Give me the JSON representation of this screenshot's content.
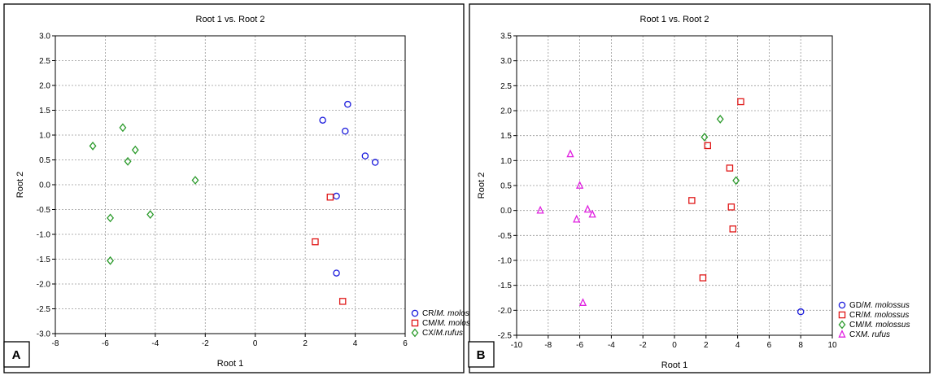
{
  "chart_data": [
    {
      "type": "scatter",
      "panel_label": "A",
      "title": "Root 1 vs. Root 2",
      "xlabel": "Root 1",
      "ylabel": "Root 2",
      "xlim": [
        -8,
        6
      ],
      "ylim": [
        -3.0,
        3.0
      ],
      "xticks": [
        "-8",
        "-6",
        "-4",
        "-2",
        "0",
        "2",
        "4",
        "6"
      ],
      "yticks": [
        "3.0",
        "2.5",
        "2.0",
        "1.5",
        "1.0",
        "0.5",
        "0.0",
        "-0.5",
        "-1.0",
        "-1.5",
        "-2.0",
        "-2.5",
        "-3.0"
      ],
      "grid": true,
      "legend_position": "bottom-right",
      "series": [
        {
          "name_prefix": "CR/",
          "name_italic": "M. molossus",
          "marker": "circle",
          "color": "#1a1adc",
          "points": [
            [
              2.7,
              1.3
            ],
            [
              3.7,
              1.62
            ],
            [
              3.6,
              1.08
            ],
            [
              4.4,
              0.58
            ],
            [
              4.8,
              0.45
            ],
            [
              3.25,
              -0.23
            ],
            [
              3.25,
              -1.78
            ]
          ]
        },
        {
          "name_prefix": "CM/",
          "name_italic": "M. molossus",
          "marker": "square",
          "color": "#e01818",
          "points": [
            [
              3.0,
              -0.25
            ],
            [
              2.4,
              -1.15
            ],
            [
              3.5,
              -2.35
            ]
          ]
        },
        {
          "name_prefix": "CX/",
          "name_italic": "M.rufus",
          "marker": "diamond",
          "color": "#2a9a2a",
          "points": [
            [
              -6.5,
              0.78
            ],
            [
              -5.3,
              1.15
            ],
            [
              -4.8,
              0.7
            ],
            [
              -5.1,
              0.47
            ],
            [
              -2.4,
              0.09
            ],
            [
              -5.8,
              -0.67
            ],
            [
              -4.2,
              -0.6
            ],
            [
              -5.8,
              -1.53
            ]
          ]
        }
      ]
    },
    {
      "type": "scatter",
      "panel_label": "B",
      "title": "Root 1 vs. Root 2",
      "xlabel": "Root 1",
      "ylabel": "Root 2",
      "xlim": [
        -10,
        10
      ],
      "ylim": [
        -2.5,
        3.5
      ],
      "xticks": [
        "-10",
        "-8",
        "-6",
        "-4",
        "-2",
        "0",
        "2",
        "4",
        "6",
        "8",
        "10"
      ],
      "yticks": [
        "3.5",
        "3.0",
        "2.5",
        "2.0",
        "1.5",
        "1.0",
        "0.5",
        "0.0",
        "-0.5",
        "-1.0",
        "-1.5",
        "-2.0",
        "-2.5"
      ],
      "grid": true,
      "legend_position": "bottom-right",
      "series": [
        {
          "name_prefix": "GD/",
          "name_italic": "M. molossus",
          "marker": "circle",
          "color": "#1a1adc",
          "points": [
            [
              8.0,
              -2.03
            ]
          ]
        },
        {
          "name_prefix": "CR/",
          "name_italic": "M. molossus",
          "marker": "square",
          "color": "#e01818",
          "points": [
            [
              4.2,
              2.18
            ],
            [
              2.1,
              1.3
            ],
            [
              3.5,
              0.85
            ],
            [
              1.1,
              0.2
            ],
            [
              3.6,
              0.07
            ],
            [
              3.7,
              -0.37
            ],
            [
              1.8,
              -1.35
            ]
          ]
        },
        {
          "name_prefix": "CM/",
          "name_italic": "M. molossus",
          "marker": "diamond",
          "color": "#2a9a2a",
          "points": [
            [
              2.9,
              1.83
            ],
            [
              1.9,
              1.47
            ],
            [
              3.9,
              0.6
            ]
          ]
        },
        {
          "name_prefix": "CX",
          "name_italic": "M. rufus",
          "marker": "triangle",
          "color": "#e020e0",
          "points": [
            [
              -6.6,
              1.13
            ],
            [
              -6.0,
              0.5
            ],
            [
              -8.5,
              0.0
            ],
            [
              -5.5,
              0.02
            ],
            [
              -6.2,
              -0.18
            ],
            [
              -5.2,
              -0.08
            ],
            [
              -5.8,
              -1.85
            ]
          ]
        }
      ]
    }
  ]
}
